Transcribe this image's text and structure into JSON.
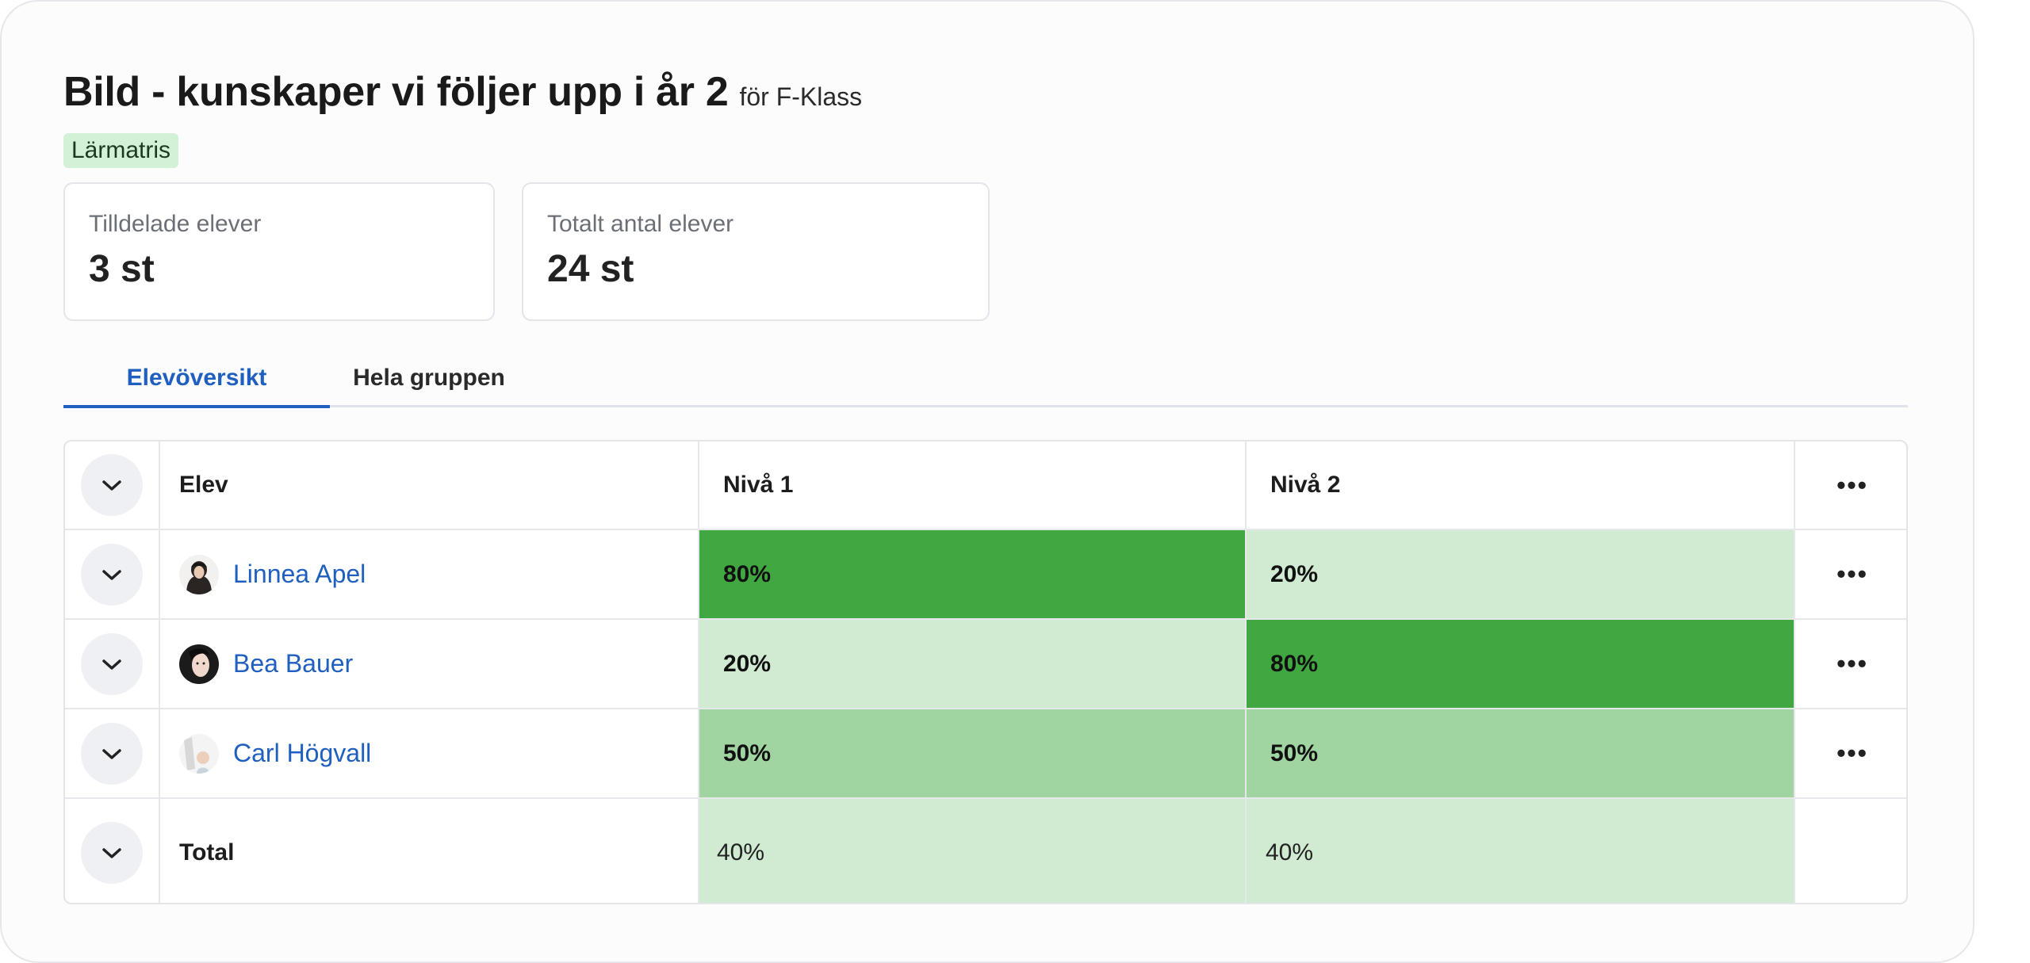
{
  "header": {
    "title": "Bild - kunskaper vi följer upp i år 2",
    "subtitle": "för F-Klass",
    "badge": "Lärmatris"
  },
  "stats": [
    {
      "label": "Tilldelade elever",
      "value": "3 st"
    },
    {
      "label": "Totalt antal elever",
      "value": "24 st"
    }
  ],
  "tabs": [
    {
      "label": "Elevöversikt",
      "active": true
    },
    {
      "label": "Hela gruppen",
      "active": false
    }
  ],
  "table": {
    "columns": [
      "Elev",
      "Nivå 1",
      "Nivå 2"
    ],
    "more_icon": "ellipsis-icon",
    "expand_icon": "chevron-down-icon",
    "rows": [
      {
        "name": "Linnea Apel",
        "niva1": "80%",
        "niva2": "20%",
        "niva1_share": 0.8,
        "niva2_share": 0.2
      },
      {
        "name": "Bea Bauer",
        "niva1": "20%",
        "niva2": "80%",
        "niva1_share": 0.2,
        "niva2_share": 0.8
      },
      {
        "name": "Carl Högvall",
        "niva1": "50%",
        "niva2": "50%",
        "niva1_share": 0.5,
        "niva2_share": 0.5
      }
    ],
    "total": {
      "label": "Total",
      "niva1": "40%",
      "niva2": "40%",
      "niva1_share": 0.4,
      "niva2_share": 0.4
    }
  },
  "colors": {
    "accent": "#1f5fbf",
    "level_high": "#41a741",
    "level_mid": "#a0d4a0",
    "level_low": "#d1ebd2",
    "badge_bg": "#d3f1d6"
  }
}
